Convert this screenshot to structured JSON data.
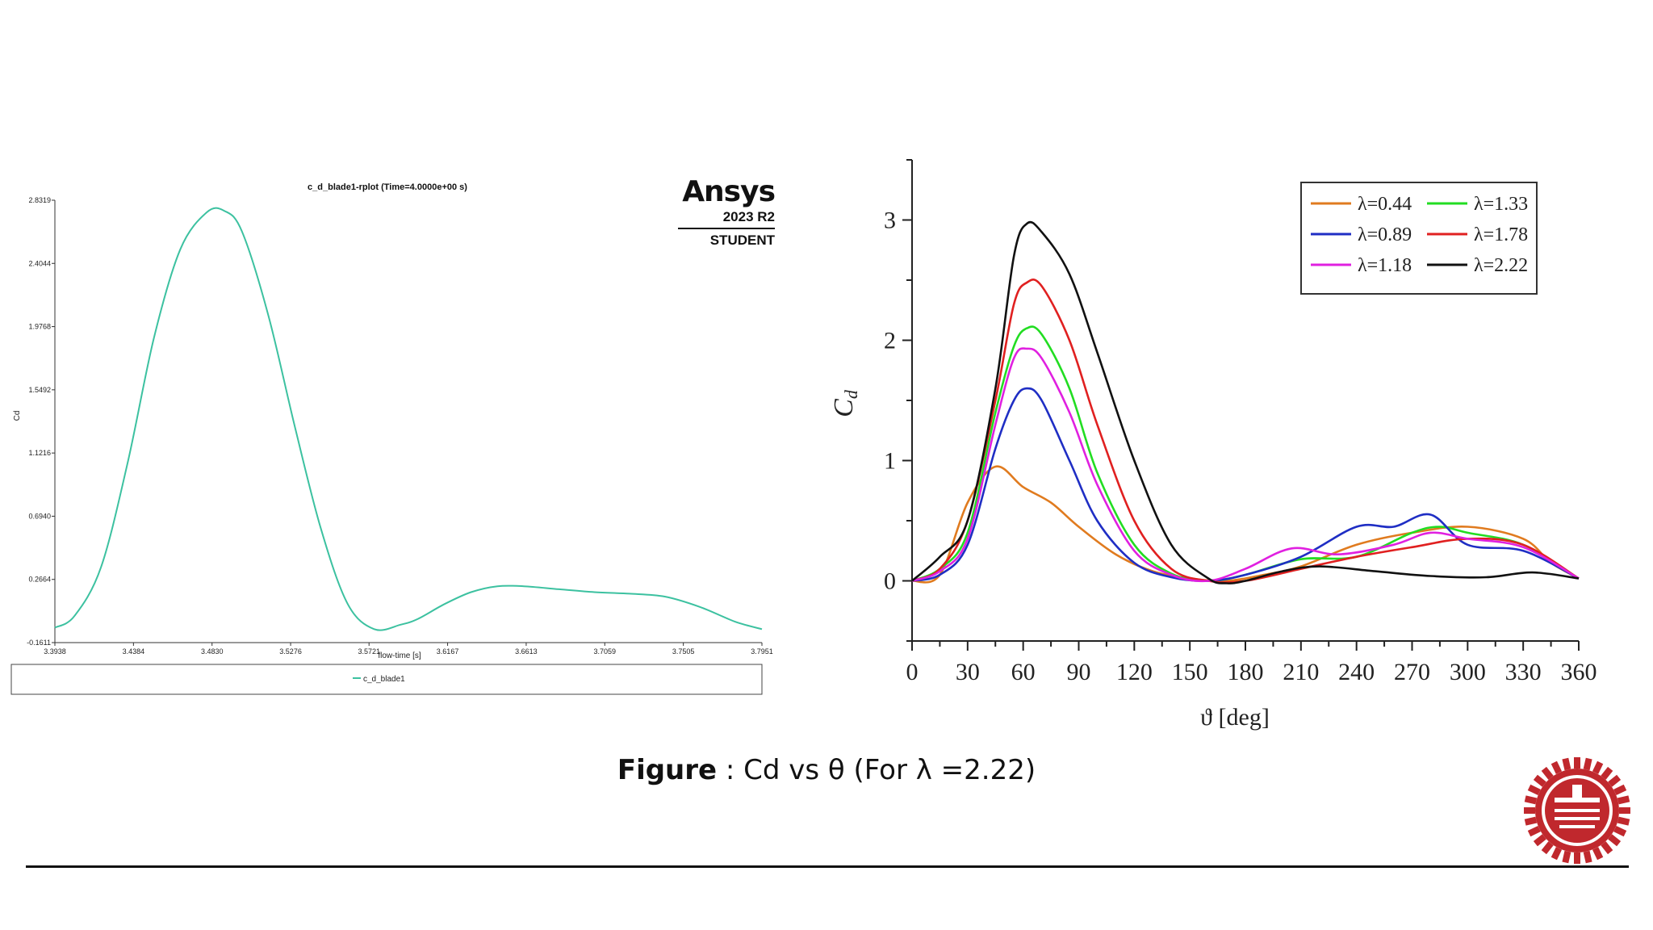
{
  "caption": {
    "bold": "Figure",
    "rest": " : Cd vs θ (For λ =2.22)"
  },
  "logo": {
    "name": "Ansys",
    "version": "2023 R2",
    "edition": "STUDENT"
  },
  "colors": {
    "left_series": "#3cc1a0",
    "seal": "#c0282d"
  },
  "chart_data": [
    {
      "type": "line",
      "title": "c_d_blade1-rplot (Time=4.0000e+00 s)",
      "xlabel": "flow-time [s]",
      "ylabel": "Cd",
      "xlim": [
        3.3938,
        3.7951
      ],
      "ylim": [
        -0.1611,
        2.8319
      ],
      "x_ticks": [
        "3.3938",
        "3.4384",
        "3.4830",
        "3.5276",
        "3.5721",
        "3.6167",
        "3.6613",
        "3.7059",
        "3.7505",
        "3.7951"
      ],
      "y_ticks": [
        "-0.1611",
        "0.2664",
        "0.6940",
        "1.1216",
        "1.5492",
        "1.9768",
        "2.4044",
        "2.8319"
      ],
      "legend_position": "bottom",
      "series": [
        {
          "name": "c_d_blade1",
          "color": "#3cc1a0",
          "x": [
            3.3938,
            3.405,
            3.42,
            3.435,
            3.45,
            3.465,
            3.48,
            3.49,
            3.5,
            3.515,
            3.53,
            3.545,
            3.56,
            3.575,
            3.59,
            3.6,
            3.615,
            3.63,
            3.645,
            3.66,
            3.68,
            3.7,
            3.72,
            3.74,
            3.76,
            3.78,
            3.7951
          ],
          "y": [
            -0.06,
            0.02,
            0.35,
            1.05,
            1.9,
            2.5,
            2.75,
            2.76,
            2.62,
            2.05,
            1.3,
            0.6,
            0.1,
            -0.07,
            -0.04,
            0.0,
            0.1,
            0.18,
            0.22,
            0.22,
            0.2,
            0.18,
            0.17,
            0.15,
            0.08,
            -0.02,
            -0.07
          ]
        }
      ]
    },
    {
      "type": "line",
      "xlabel": "ϑ [deg]",
      "ylabel": "Cd",
      "xlim": [
        0,
        360
      ],
      "ylim": [
        -0.5,
        3.5
      ],
      "x_ticks": [
        0,
        30,
        60,
        90,
        120,
        150,
        180,
        210,
        240,
        270,
        300,
        330,
        360
      ],
      "y_ticks": [
        0,
        1,
        2,
        3
      ],
      "legend_position": "top-right",
      "series": [
        {
          "name": "λ=0.44",
          "color": "#e07b1f",
          "x": [
            0,
            15,
            30,
            45,
            60,
            75,
            90,
            110,
            130,
            150,
            170,
            190,
            210,
            240,
            270,
            300,
            330,
            345,
            360
          ],
          "y": [
            0.0,
            0.05,
            0.65,
            0.95,
            0.78,
            0.65,
            0.45,
            0.22,
            0.08,
            0.02,
            0.0,
            0.05,
            0.12,
            0.3,
            0.4,
            0.45,
            0.35,
            0.15,
            0.02
          ]
        },
        {
          "name": "λ=1.33",
          "color": "#22dd22",
          "x": [
            0,
            15,
            30,
            45,
            55,
            62,
            70,
            85,
            100,
            120,
            140,
            160,
            180,
            210,
            240,
            270,
            285,
            300,
            330,
            360
          ],
          "y": [
            0.0,
            0.1,
            0.4,
            1.4,
            1.95,
            2.1,
            2.05,
            1.6,
            0.9,
            0.3,
            0.06,
            0.0,
            0.05,
            0.18,
            0.2,
            0.4,
            0.45,
            0.4,
            0.3,
            0.02
          ]
        },
        {
          "name": "λ=0.89",
          "color": "#1f2ec4",
          "x": [
            0,
            15,
            30,
            45,
            55,
            62,
            70,
            85,
            100,
            120,
            140,
            160,
            180,
            210,
            240,
            260,
            280,
            300,
            330,
            360
          ],
          "y": [
            0.0,
            0.05,
            0.3,
            1.1,
            1.5,
            1.6,
            1.5,
            1.0,
            0.5,
            0.15,
            0.03,
            0.0,
            0.05,
            0.2,
            0.45,
            0.45,
            0.55,
            0.3,
            0.25,
            0.02
          ]
        },
        {
          "name": "λ=1.78",
          "color": "#e02020",
          "x": [
            0,
            15,
            30,
            45,
            55,
            62,
            70,
            85,
            100,
            120,
            140,
            160,
            180,
            210,
            240,
            270,
            300,
            330,
            360
          ],
          "y": [
            0.0,
            0.1,
            0.5,
            1.5,
            2.3,
            2.48,
            2.45,
            2.0,
            1.3,
            0.5,
            0.1,
            0.0,
            0.0,
            0.1,
            0.2,
            0.28,
            0.35,
            0.3,
            0.02
          ]
        },
        {
          "name": "λ=1.18",
          "color": "#e020e0",
          "x": [
            0,
            15,
            30,
            45,
            55,
            62,
            70,
            85,
            100,
            120,
            140,
            160,
            180,
            205,
            230,
            260,
            280,
            300,
            330,
            360
          ],
          "y": [
            0.0,
            0.08,
            0.35,
            1.3,
            1.85,
            1.93,
            1.85,
            1.4,
            0.8,
            0.25,
            0.05,
            0.0,
            0.1,
            0.27,
            0.22,
            0.3,
            0.4,
            0.35,
            0.28,
            0.02
          ]
        },
        {
          "name": "λ=2.22",
          "color": "#111111",
          "x": [
            0,
            15,
            30,
            45,
            55,
            62,
            70,
            85,
            100,
            120,
            140,
            160,
            170,
            180,
            200,
            220,
            250,
            280,
            310,
            335,
            360
          ],
          "y": [
            0.0,
            0.2,
            0.5,
            1.6,
            2.7,
            2.97,
            2.9,
            2.55,
            1.9,
            1.0,
            0.3,
            0.02,
            -0.02,
            0.0,
            0.08,
            0.12,
            0.08,
            0.04,
            0.03,
            0.07,
            0.02
          ]
        }
      ]
    }
  ]
}
